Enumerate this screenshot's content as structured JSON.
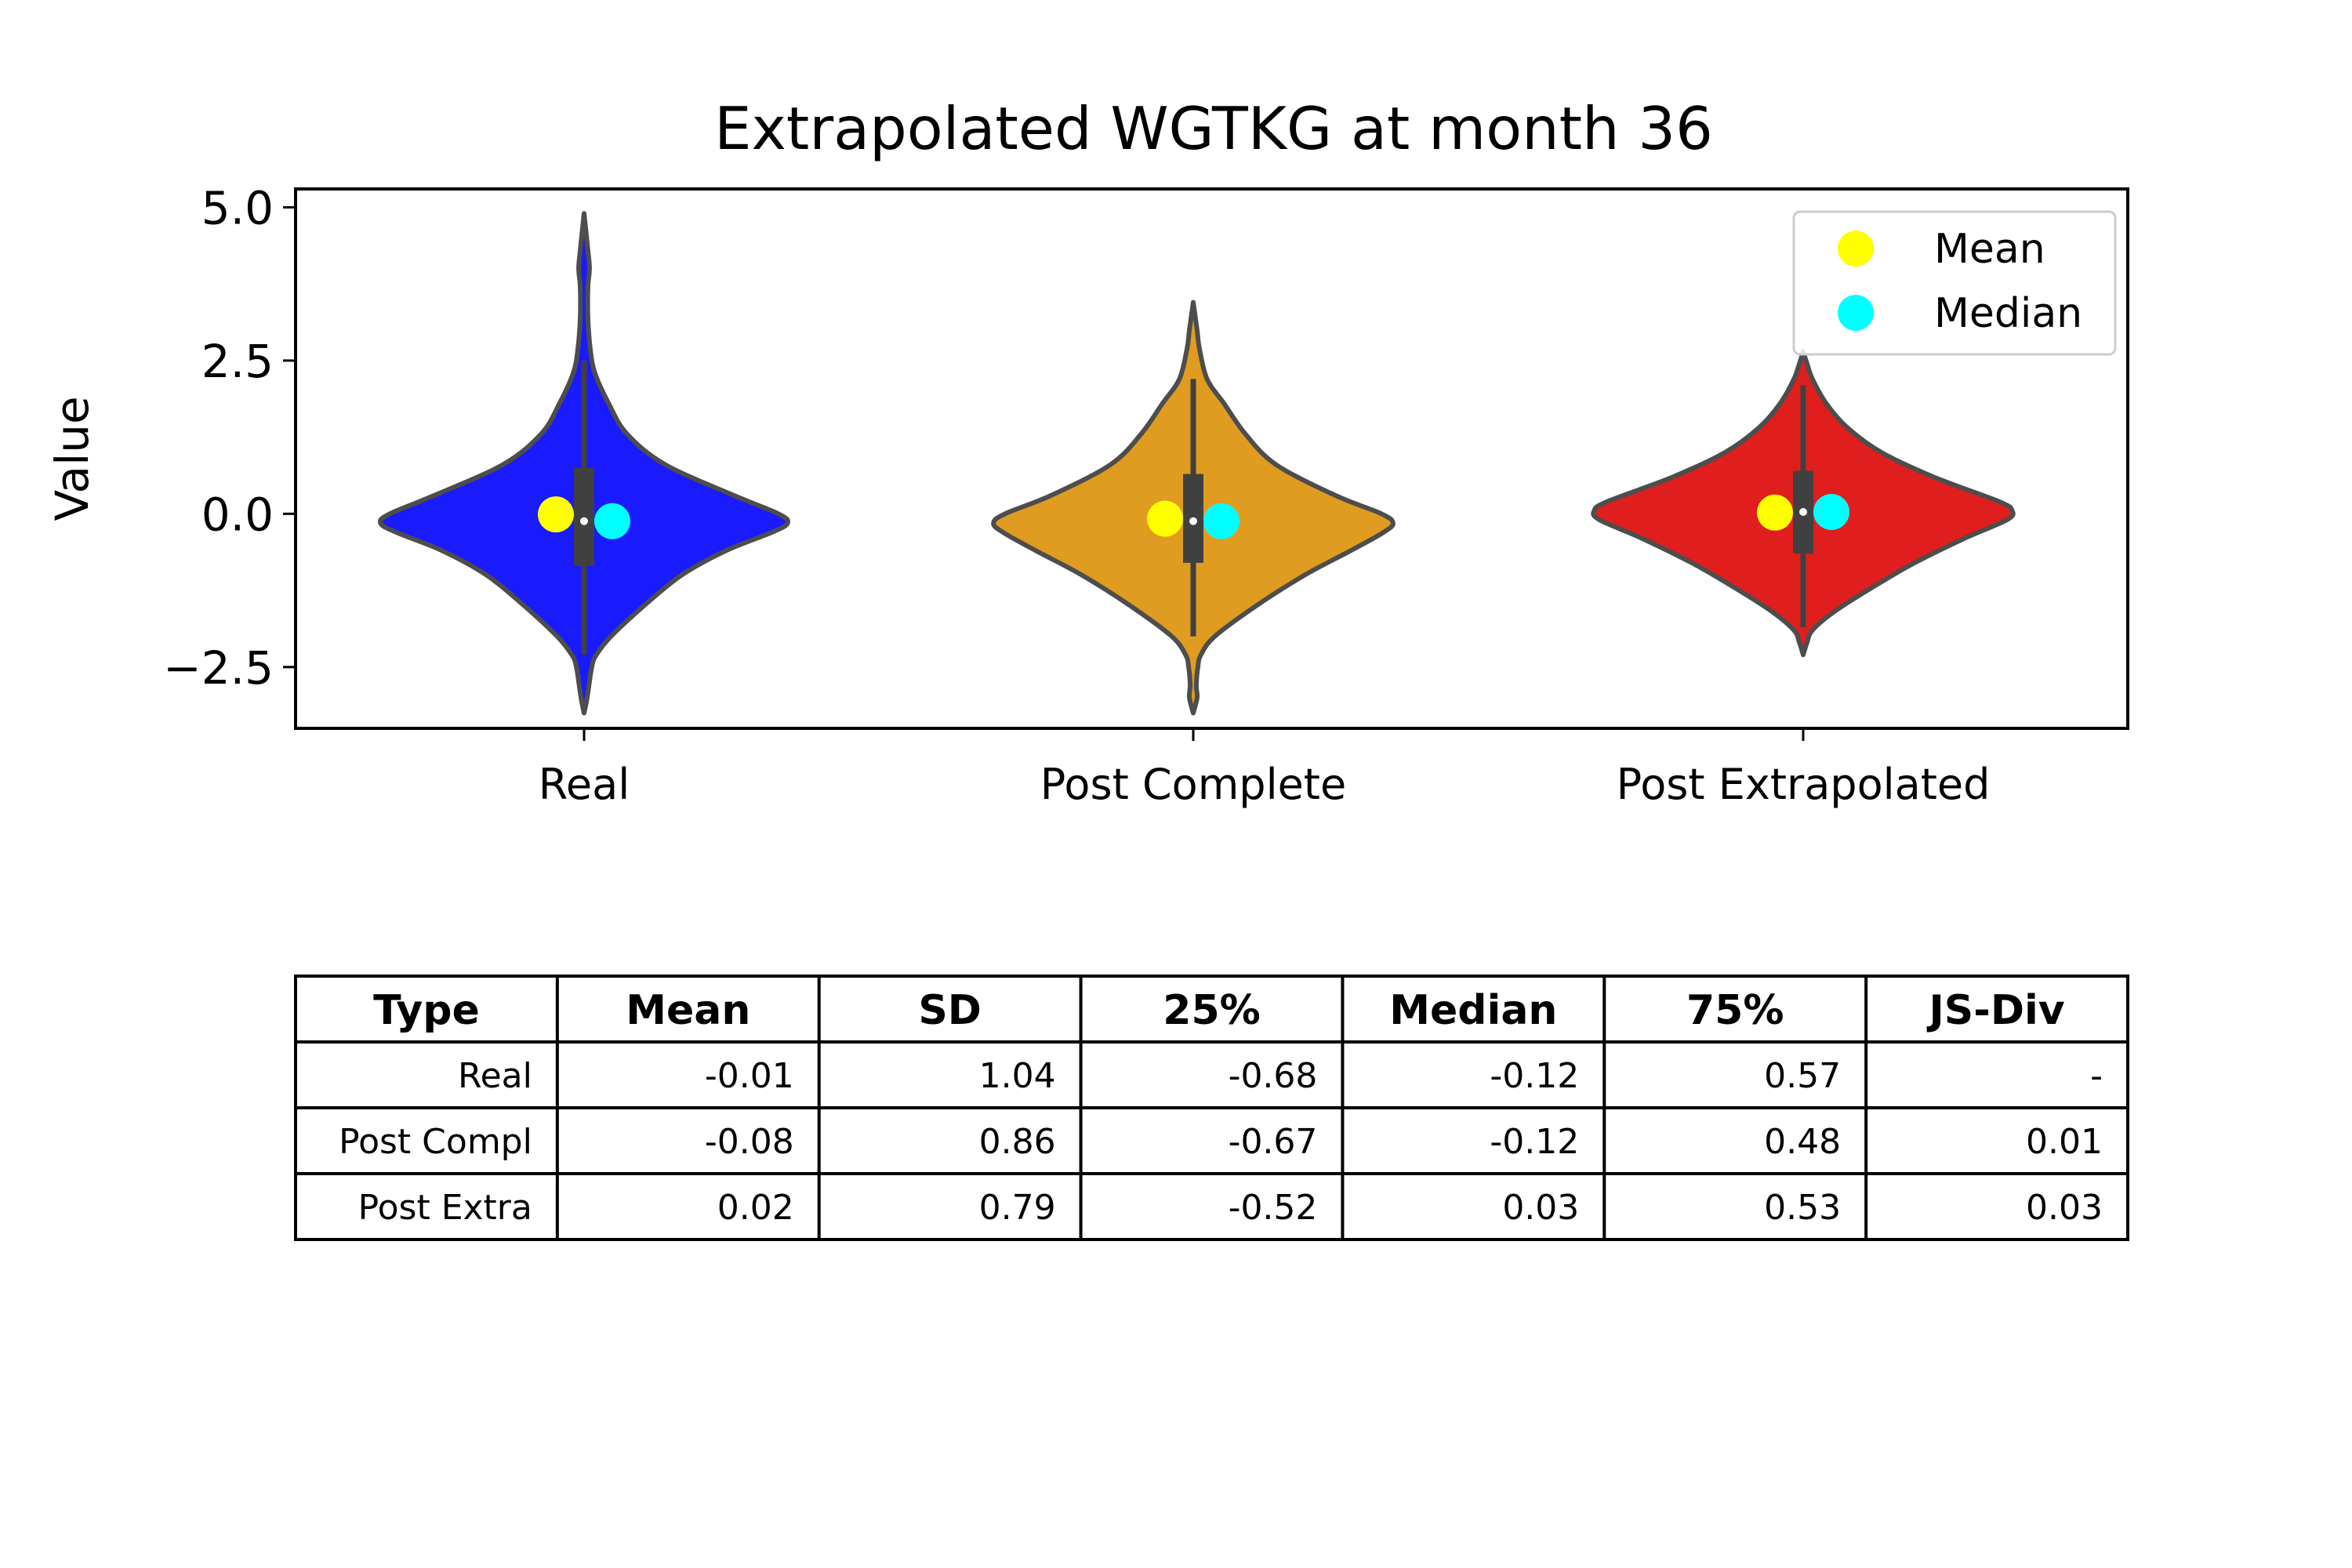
{
  "chart_data": [
    {
      "type": "violin",
      "title": "Extrapolated WGTKG at month 36",
      "xlabel": "",
      "ylabel": "Value",
      "ylim": [
        -3.5,
        5.3
      ],
      "yticks": [
        5.0,
        2.5,
        0.0,
        -2.5
      ],
      "ytick_labels": [
        "5.0",
        "2.5",
        "0.0",
        "−2.5"
      ],
      "categories": [
        "Real",
        "Post Complete",
        "Post Extrapolated"
      ],
      "colors": [
        "#1a1aff",
        "#e09c20",
        "#e01e1e"
      ],
      "outline_color": "#4d4d4d",
      "grid": false,
      "legend": {
        "position": "top-right",
        "entries": [
          {
            "label": "Mean",
            "color": "#ffff00"
          },
          {
            "label": "Median",
            "color": "#00ffff"
          }
        ]
      },
      "series": [
        {
          "category": "Real",
          "mean": -0.01,
          "median": -0.12,
          "q1": -0.68,
          "q3": 0.57,
          "box_low": -0.85,
          "box_high": 0.75,
          "inner_median": -0.12,
          "whisker_low": -2.3,
          "whisker_high": 2.5,
          "data_min": -3.25,
          "data_max": 4.9,
          "profile": [
            [
              -3.25,
              0.0
            ],
            [
              -3.0,
              0.04
            ],
            [
              -2.5,
              0.1
            ],
            [
              -2.3,
              0.16
            ],
            [
              -2.0,
              0.35
            ],
            [
              -1.5,
              0.78
            ],
            [
              -1.0,
              1.27
            ],
            [
              -0.6,
              1.85
            ],
            [
              -0.3,
              2.45
            ],
            [
              -0.15,
              2.65
            ],
            [
              0.0,
              2.53
            ],
            [
              0.3,
              1.95
            ],
            [
              0.8,
              1.06
            ],
            [
              1.3,
              0.56
            ],
            [
              1.8,
              0.32
            ],
            [
              2.3,
              0.14
            ],
            [
              2.7,
              0.08
            ],
            [
              3.2,
              0.05
            ],
            [
              3.7,
              0.05
            ],
            [
              4.0,
              0.07
            ],
            [
              4.3,
              0.05
            ],
            [
              4.9,
              0.0
            ]
          ]
        },
        {
          "category": "Post Complete",
          "mean": -0.08,
          "median": -0.12,
          "q1": -0.67,
          "q3": 0.48,
          "box_low": -0.8,
          "box_high": 0.65,
          "inner_median": -0.12,
          "whisker_low": -2.0,
          "whisker_high": 2.2,
          "data_min": -3.25,
          "data_max": 3.45,
          "profile": [
            [
              -3.25,
              0.0
            ],
            [
              -3.0,
              0.05
            ],
            [
              -2.8,
              0.04
            ],
            [
              -2.5,
              0.06
            ],
            [
              -2.3,
              0.1
            ],
            [
              -2.0,
              0.28
            ],
            [
              -1.5,
              0.82
            ],
            [
              -1.0,
              1.45
            ],
            [
              -0.6,
              2.05
            ],
            [
              -0.3,
              2.48
            ],
            [
              -0.15,
              2.6
            ],
            [
              0.0,
              2.45
            ],
            [
              0.3,
              1.85
            ],
            [
              0.8,
              1.08
            ],
            [
              1.3,
              0.68
            ],
            [
              1.8,
              0.4
            ],
            [
              2.2,
              0.18
            ],
            [
              2.7,
              0.08
            ],
            [
              3.0,
              0.05
            ],
            [
              3.45,
              0.0
            ]
          ]
        },
        {
          "category": "Post Extrapolated",
          "mean": 0.02,
          "median": 0.03,
          "q1": -0.52,
          "q3": 0.53,
          "box_low": -0.65,
          "box_high": 0.7,
          "inner_median": 0.03,
          "whisker_low": -1.85,
          "whisker_high": 2.1,
          "data_min": -2.3,
          "data_max": 2.65,
          "profile": [
            [
              -2.3,
              0.0
            ],
            [
              -2.1,
              0.05
            ],
            [
              -1.9,
              0.12
            ],
            [
              -1.6,
              0.4
            ],
            [
              -1.2,
              0.9
            ],
            [
              -0.8,
              1.45
            ],
            [
              -0.4,
              2.1
            ],
            [
              -0.1,
              2.65
            ],
            [
              0.05,
              2.72
            ],
            [
              0.2,
              2.55
            ],
            [
              0.6,
              1.7
            ],
            [
              1.0,
              1.02
            ],
            [
              1.4,
              0.58
            ],
            [
              1.8,
              0.3
            ],
            [
              2.2,
              0.12
            ],
            [
              2.45,
              0.05
            ],
            [
              2.65,
              0.0
            ]
          ]
        }
      ]
    },
    {
      "type": "table",
      "columns": [
        "Type",
        "Mean",
        "SD",
        "25%",
        "Median",
        "75%",
        "JS-Div"
      ],
      "rows": [
        [
          "Real",
          "-0.01",
          "1.04",
          "-0.68",
          "-0.12",
          "0.57",
          "-"
        ],
        [
          "Post Compl",
          "-0.08",
          "0.86",
          "-0.67",
          "-0.12",
          "0.48",
          "0.01"
        ],
        [
          "Post Extra",
          "0.02",
          "0.79",
          "-0.52",
          "0.03",
          "0.53",
          "0.03"
        ]
      ]
    }
  ]
}
